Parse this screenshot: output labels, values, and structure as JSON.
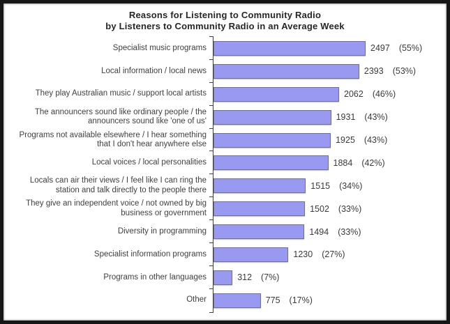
{
  "title": {
    "line1": "Reasons for Listening to Community Radio",
    "line2": "by Listeners to Community Radio in an Average Week"
  },
  "chart_data": {
    "type": "bar",
    "orientation": "horizontal",
    "title": "Reasons for Listening to Community Radio by Listeners to Community Radio in an Average Week",
    "categories": [
      "Specialist music programs",
      "Local information / local news",
      "They play Australian music / support local artists",
      "The announcers sound like ordinary people / the\nannouncers sound like 'one of us'",
      "Programs not available elsewhere / I hear something\nthat I don't hear anywhere else",
      "Local voices / local personalities",
      "Locals can air their views / I feel like I can ring the\nstation and talk directly to the people there",
      "They give an independent voice / not owned by big\nbusiness or government",
      "Diversity in programming",
      "Specialist information programs",
      "Programs in other languages",
      "Other"
    ],
    "values": [
      2497,
      2393,
      2062,
      1931,
      1925,
      1884,
      1515,
      1502,
      1494,
      1230,
      312,
      775
    ],
    "percents": [
      55,
      53,
      46,
      43,
      43,
      42,
      34,
      33,
      33,
      27,
      7,
      17
    ],
    "value_label_format": "{value}  ({percent}%)",
    "bar_color": "#9a99f1",
    "bar_border_color": "#6f6f8f",
    "axis_color": "#3f3f3f",
    "xlim": [
      0,
      2800
    ],
    "grid": false,
    "legend": false,
    "data_labels": true
  }
}
